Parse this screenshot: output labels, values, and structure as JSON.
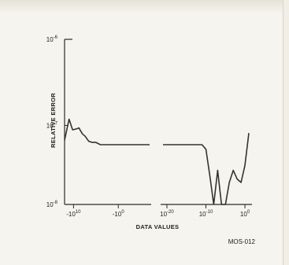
{
  "chart_data": {
    "type": "line",
    "title": "",
    "xlabel": "DATA VALUES",
    "ylabel": "RELATIVE ERROR",
    "yscale": "log",
    "ylim": [
      1e-08,
      1e-06
    ],
    "y_ticks": [
      {
        "value": 1e-06,
        "label": "10",
        "exp": "-6"
      },
      {
        "value": 1e-07,
        "label": "10",
        "exp": "-7"
      },
      {
        "value": 1e-08,
        "label": "10",
        "exp": "-8"
      }
    ],
    "x_ticks_left": [
      {
        "value": "-1e10",
        "label": "-10",
        "exp": "10"
      },
      {
        "value": "-1e0",
        "label": "-10",
        "exp": "0"
      }
    ],
    "x_ticks_right": [
      {
        "value": "1e-20",
        "label": "10",
        "exp": "-20"
      },
      {
        "value": "1e-10",
        "label": "10",
        "exp": "-10"
      },
      {
        "value": "1e0",
        "label": "10",
        "exp": "0"
      }
    ],
    "segments": [
      {
        "x_exp": [
          12,
          11,
          10.2,
          9.5,
          8.8,
          8,
          7.4,
          6.6,
          5.8,
          5,
          4,
          3,
          2,
          1,
          0,
          -1,
          -3,
          -5,
          -7
        ],
        "y": [
          6.5e-08,
          1.2e-07,
          8.8e-08,
          9e-08,
          9.3e-08,
          7.8e-08,
          7.3e-08,
          6.3e-08,
          6.1e-08,
          6.1e-08,
          5.7e-08,
          5.7e-08,
          5.7e-08,
          5.7e-08,
          5.7e-08,
          5.7e-08,
          5.7e-08,
          5.7e-08,
          5.7e-08
        ]
      },
      {
        "x_exp": [
          -21,
          -19,
          -17,
          -15,
          -13,
          -11,
          -10,
          -9,
          -8,
          -7,
          -6,
          -5,
          -4,
          -3,
          -2,
          -1,
          0,
          1
        ],
        "y": [
          5.7e-08,
          5.7e-08,
          5.7e-08,
          5.7e-08,
          5.7e-08,
          5.7e-08,
          5e-08,
          2.3e-08,
          1e-08,
          2.7e-08,
          1e-08,
          1e-08,
          1.9e-08,
          2.7e-08,
          2.1e-08,
          1.9e-08,
          3.1e-08,
          8e-08
        ]
      }
    ],
    "grid": false,
    "legend": "none",
    "figure_id": "MOS-012"
  }
}
